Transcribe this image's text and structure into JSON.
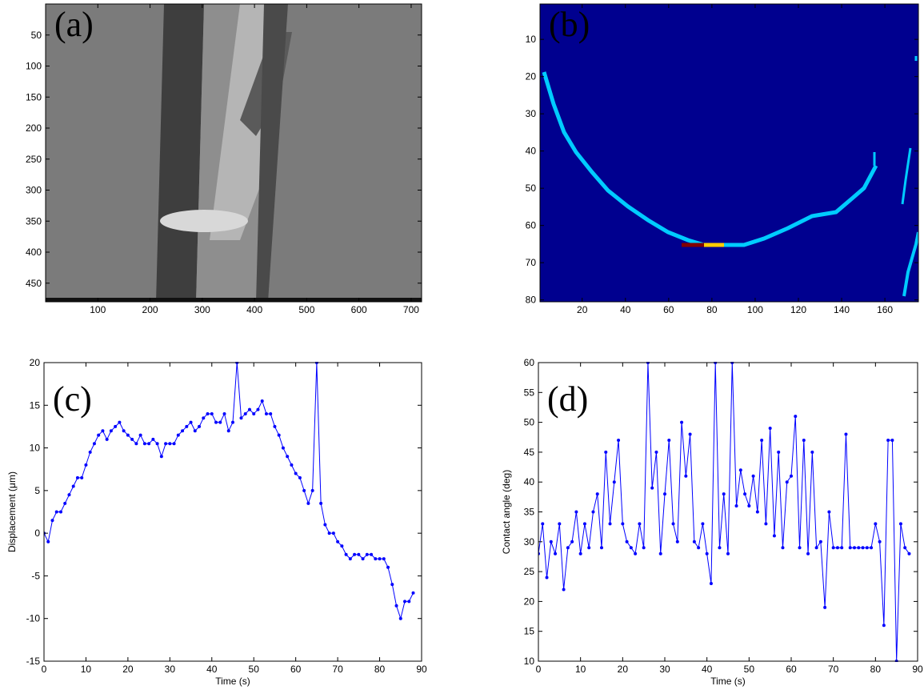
{
  "chart_data": [
    {
      "type": "image",
      "label": "(a)",
      "xlim": [
        0,
        720
      ],
      "ylim": [
        0,
        480
      ],
      "y_inverted": true,
      "xticks": [
        100,
        200,
        300,
        400,
        500,
        600,
        700
      ],
      "yticks": [
        50,
        100,
        150,
        200,
        250,
        300,
        350,
        400,
        450
      ]
    },
    {
      "type": "image",
      "label": "(b)",
      "xlim": [
        0.5,
        175.5
      ],
      "ylim": [
        0.5,
        80.5
      ],
      "y_inverted": true,
      "xticks": [
        20,
        40,
        60,
        80,
        100,
        120,
        140,
        160
      ],
      "yticks": [
        10,
        20,
        30,
        40,
        50,
        60,
        70,
        80
      ]
    },
    {
      "type": "line",
      "label": "(c)",
      "xlabel": "Time (s)",
      "ylabel": "Displacement (μm)",
      "xlim": [
        0,
        90
      ],
      "ylim": [
        -15,
        20
      ],
      "xticks": [
        0,
        10,
        20,
        30,
        40,
        50,
        60,
        70,
        80,
        90
      ],
      "yticks": [
        -15,
        -10,
        -5,
        0,
        5,
        10,
        15,
        20
      ],
      "color": "#0000ff",
      "x": [
        0,
        1,
        2,
        3,
        4,
        5,
        6,
        7,
        8,
        9,
        10,
        11,
        12,
        13,
        14,
        15,
        16,
        17,
        18,
        19,
        20,
        21,
        22,
        23,
        24,
        25,
        26,
        27,
        28,
        29,
        30,
        31,
        32,
        33,
        34,
        35,
        36,
        37,
        38,
        39,
        40,
        41,
        42,
        43,
        44,
        45,
        46,
        47,
        48,
        49,
        50,
        51,
        52,
        53,
        54,
        55,
        56,
        57,
        58,
        59,
        60,
        61,
        62,
        63,
        64,
        65,
        66,
        67,
        68,
        69,
        70,
        71,
        72,
        73,
        74,
        75,
        76,
        77,
        78,
        79,
        80,
        81,
        82,
        83,
        84,
        85,
        86,
        87,
        88
      ],
      "values": [
        0,
        -1,
        1.5,
        2.5,
        2.5,
        3.5,
        4.5,
        5.5,
        6.5,
        6.5,
        8,
        9.5,
        10.5,
        11.5,
        12,
        11,
        12,
        12.5,
        13,
        12,
        11.5,
        11,
        10.5,
        11.5,
        10.5,
        10.5,
        11,
        10.5,
        9,
        10.5,
        10.5,
        10.5,
        11.5,
        12,
        12.5,
        13,
        12,
        12.5,
        13.5,
        14,
        14,
        13,
        13,
        14,
        12,
        13,
        20,
        13.5,
        14,
        14.5,
        14,
        14.5,
        15.5,
        14,
        14,
        12.5,
        11.5,
        10,
        9,
        8,
        7,
        6.5,
        5,
        3.5,
        5,
        20,
        3.5,
        1,
        0,
        0,
        -1,
        -1.5,
        -2.5,
        -3,
        -2.5,
        -2.5,
        -3,
        -2.5,
        -2.5,
        -3,
        -3,
        -3,
        -4,
        -6,
        -8.5,
        -10,
        -8,
        -8,
        -7
      ]
    },
    {
      "type": "line",
      "label": "(d)",
      "xlabel": "Time (s)",
      "ylabel": "Contact angle (deg)",
      "xlim": [
        0,
        90
      ],
      "ylim": [
        10,
        60
      ],
      "xticks": [
        0,
        10,
        20,
        30,
        40,
        50,
        60,
        70,
        80,
        90
      ],
      "yticks": [
        10,
        15,
        20,
        25,
        30,
        35,
        40,
        45,
        50,
        55,
        60
      ],
      "color": "#0000ff",
      "x": [
        0,
        1,
        2,
        3,
        4,
        5,
        6,
        7,
        8,
        9,
        10,
        11,
        12,
        13,
        14,
        15,
        16,
        17,
        18,
        19,
        20,
        21,
        22,
        23,
        24,
        25,
        26,
        27,
        28,
        29,
        30,
        31,
        32,
        33,
        34,
        35,
        36,
        37,
        38,
        39,
        40,
        41,
        42,
        43,
        44,
        45,
        46,
        47,
        48,
        49,
        50,
        51,
        52,
        53,
        54,
        55,
        56,
        57,
        58,
        59,
        60,
        61,
        62,
        63,
        64,
        65,
        66,
        67,
        68,
        69,
        70,
        71,
        72,
        73,
        74,
        75,
        76,
        77,
        78,
        79,
        80,
        81,
        82,
        83,
        84,
        85,
        86,
        87,
        88
      ],
      "values": [
        28,
        33,
        24,
        30,
        28,
        33,
        22,
        29,
        30,
        35,
        28,
        33,
        29,
        35,
        38,
        29,
        45,
        33,
        40,
        47,
        33,
        30,
        29,
        28,
        33,
        29,
        60,
        39,
        45,
        28,
        38,
        47,
        33,
        30,
        50,
        41,
        48,
        30,
        29,
        33,
        28,
        23,
        60,
        29,
        38,
        28,
        60,
        36,
        42,
        38,
        36,
        41,
        35,
        47,
        33,
        49,
        31,
        45,
        29,
        40,
        41,
        51,
        29,
        47,
        28,
        45,
        29,
        30,
        19,
        35,
        29,
        29,
        29,
        48,
        29,
        29,
        29,
        29,
        29,
        29,
        33,
        30,
        16,
        47,
        47,
        10,
        33,
        29,
        28
      ]
    }
  ]
}
